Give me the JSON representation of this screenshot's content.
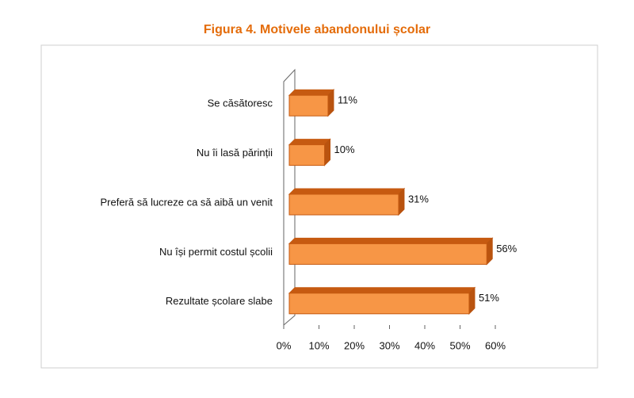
{
  "chart_data": {
    "type": "bar",
    "orientation": "horizontal",
    "title": "Figura 4. Motivele abandonului școlar",
    "categories": [
      "Se căsătoresc",
      "Nu îi lasă părinții",
      "Preferă să lucreze ca să aibă un venit",
      "Nu își permit costul școlii",
      "Rezultate școlare slabe"
    ],
    "values": [
      11,
      10,
      31,
      56,
      51
    ],
    "value_labels": [
      "11%",
      "10%",
      "31%",
      "56%",
      "51%"
    ],
    "color": "#f79646",
    "xlim": [
      0,
      60
    ],
    "xticks": [
      {
        "value": 0,
        "label": "0%"
      },
      {
        "value": 10,
        "label": "10%"
      },
      {
        "value": 20,
        "label": "20%"
      },
      {
        "value": 30,
        "label": "30%"
      },
      {
        "value": 40,
        "label": "40%"
      },
      {
        "value": 50,
        "label": "50%"
      },
      {
        "value": 60,
        "label": "60%"
      }
    ]
  }
}
